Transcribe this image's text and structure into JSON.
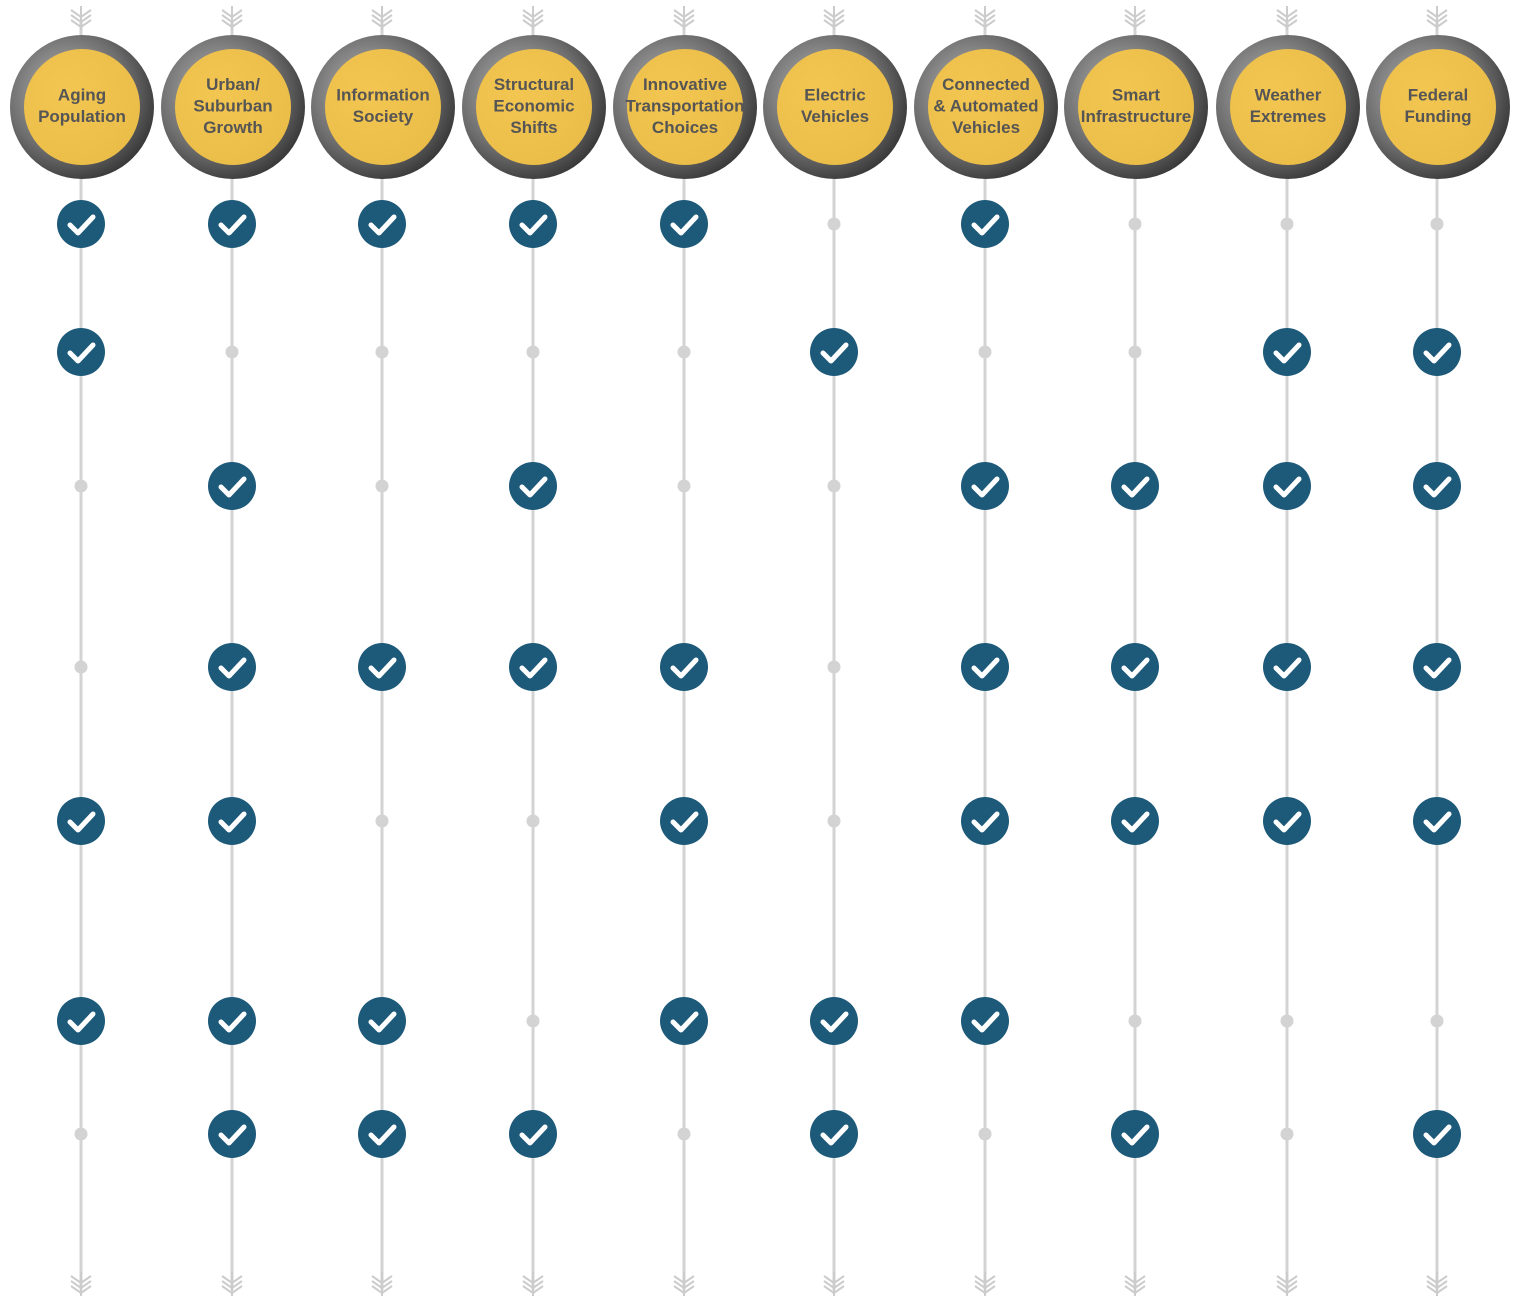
{
  "columns": [
    {
      "lines": [
        "Aging",
        "Population"
      ],
      "checks": [
        true,
        true,
        false,
        false,
        true,
        true,
        false
      ]
    },
    {
      "lines": [
        "Urban/",
        "Suburban",
        "Growth"
      ],
      "checks": [
        true,
        false,
        true,
        true,
        true,
        true,
        true
      ]
    },
    {
      "lines": [
        "Information",
        "Society"
      ],
      "checks": [
        true,
        false,
        false,
        true,
        false,
        true,
        true
      ]
    },
    {
      "lines": [
        "Structural",
        "Economic",
        "Shifts"
      ],
      "checks": [
        true,
        false,
        true,
        true,
        false,
        false,
        true
      ]
    },
    {
      "lines": [
        "Innovative",
        "Transportation",
        "Choices"
      ],
      "checks": [
        true,
        false,
        false,
        true,
        true,
        true,
        false
      ]
    },
    {
      "lines": [
        "Electric",
        "Vehicles"
      ],
      "checks": [
        false,
        true,
        false,
        false,
        false,
        true,
        true
      ]
    },
    {
      "lines": [
        "Connected",
        "& Automated",
        "Vehicles"
      ],
      "checks": [
        true,
        false,
        true,
        true,
        true,
        true,
        false
      ]
    },
    {
      "lines": [
        "Smart",
        "Infrastructure"
      ],
      "checks": [
        false,
        false,
        true,
        true,
        true,
        false,
        true
      ]
    },
    {
      "lines": [
        "Weather",
        "Extremes"
      ],
      "checks": [
        false,
        true,
        true,
        true,
        true,
        false,
        false
      ]
    },
    {
      "lines": [
        "Federal",
        "Funding"
      ],
      "checks": [
        false,
        true,
        true,
        true,
        true,
        false,
        true
      ]
    }
  ]
}
